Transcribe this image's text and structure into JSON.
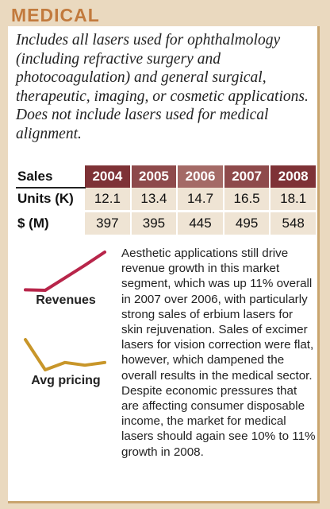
{
  "title": "MEDICAL",
  "intro": "Includes all lasers used for ophthalmology (including refractive surgery and photocoagulation) and general surgical, therapeutic, imaging, or cosmetic applications. Does not include lasers used for medical alignment.",
  "table": {
    "header_label": "Sales",
    "years": [
      "2004",
      "2005",
      "2006",
      "2007",
      "2008"
    ],
    "rows": [
      {
        "label": "Units (K)",
        "values": [
          "12.1",
          "13.4",
          "14.7",
          "16.5",
          "18.1"
        ]
      },
      {
        "label": "$ (M)",
        "values": [
          "397",
          "395",
          "445",
          "495",
          "548"
        ]
      }
    ]
  },
  "sparklines": {
    "revenues": {
      "label": "Revenues",
      "values": [
        397,
        395,
        445,
        495,
        548
      ],
      "color": "#b8254a"
    },
    "avg_pricing": {
      "label": "Avg pricing",
      "values": [
        32.8,
        29.5,
        30.3,
        30.0,
        30.3
      ],
      "color": "#c8962a"
    }
  },
  "body": "Aesthetic applications still drive revenue growth in this market segment, which was up 11% overall in 2007 over 2006, with particularly strong sales of erbium lasers for skin rejuvenation. Sales of excimer lasers for vision correction were flat, however, which dampened the overall results in the medical sector. Despite economic pressures that are affecting consumer disposable income, the market for medical lasers should again see 10% to 11% growth in 2008.",
  "colors": {
    "title": "#c27a3d",
    "header_bg": "#8b3c40",
    "cell_bg": "#efe4d4",
    "border": "#c9a56f"
  }
}
